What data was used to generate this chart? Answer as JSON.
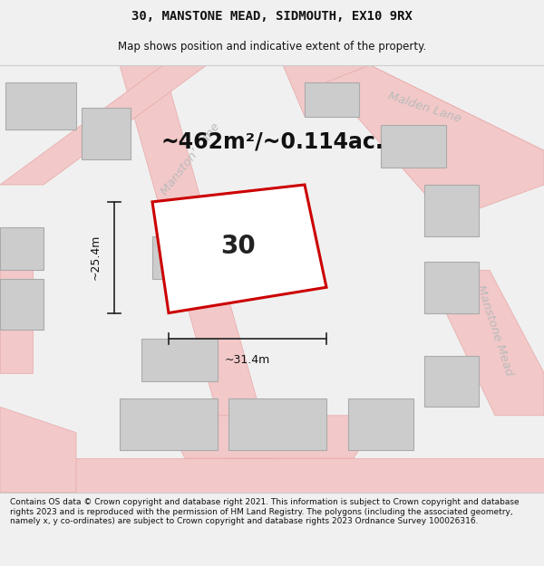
{
  "title": "30, MANSTONE MEAD, SIDMOUTH, EX10 9RX",
  "subtitle": "Map shows position and indicative extent of the property.",
  "footer": "Contains OS data © Crown copyright and database right 2021. This information is subject to Crown copyright and database rights 2023 and is reproduced with the permission of HM Land Registry. The polygons (including the associated geometry, namely x, y co-ordinates) are subject to Crown copyright and database rights 2023 Ordnance Survey 100026316.",
  "area_label": "~462m²/~0.114ac.",
  "width_label": "~31.4m",
  "height_label": "~25.4m",
  "plot_number": "30",
  "bg_color": "#f0f0f0",
  "map_bg": "#f8f8f8",
  "road_color": "#f2c8c8",
  "road_outline": "#e8a8a8",
  "building_fill": "#cccccc",
  "building_outline": "#aaaaaa",
  "plot_outline": "#cc0000",
  "plot_fill": "#ffffff",
  "dim_color": "#222222",
  "street_label_color": "#bbbbbb",
  "title_fontsize": 10,
  "subtitle_fontsize": 8.5,
  "footer_fontsize": 6.5,
  "area_fontsize": 17,
  "plot_number_fontsize": 20,
  "dim_fontsize": 9,
  "street_fontsize": 9.5
}
